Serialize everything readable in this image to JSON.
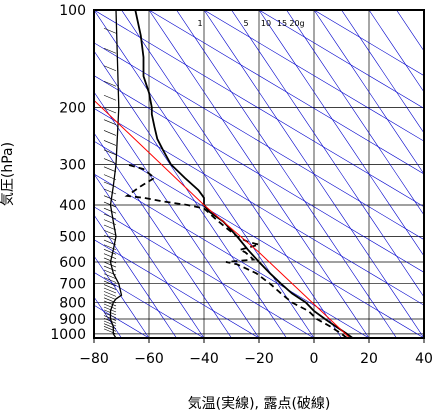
{
  "chart_data": {
    "type": "line",
    "title": "",
    "xlabel": "気温(実線), 露点(破線)",
    "ylabel": "気圧(hPa)",
    "xlim": [
      -80,
      40
    ],
    "ylim": [
      1030,
      100
    ],
    "y_scale": "log",
    "xticks": [
      -80,
      -60,
      -40,
      -20,
      0,
      20,
      40
    ],
    "yticks": [
      100,
      200,
      300,
      400,
      500,
      600,
      700,
      800,
      900,
      1000
    ],
    "mixing_ratio_labels": [
      "1",
      "5",
      "10",
      "15",
      "20g"
    ],
    "colors": {
      "temperature": "#000000",
      "dewpoint": "#000000",
      "parcel": "#ff0000",
      "grid": "#000000",
      "reference": "#0000cc"
    },
    "series": [
      {
        "name": "",
        "style": "solid",
        "points": [
          [
            14,
            1030
          ],
          [
            12,
            1000
          ],
          [
            8,
            950
          ],
          [
            4,
            900
          ],
          [
            0,
            850
          ],
          [
            -3,
            800
          ],
          [
            -8,
            750
          ],
          [
            -12,
            700
          ],
          [
            -16,
            650
          ],
          [
            -20,
            600
          ],
          [
            -24,
            550
          ],
          [
            -28,
            500
          ],
          [
            -33,
            450
          ],
          [
            -38,
            420
          ],
          [
            -40,
            400
          ],
          [
            -40,
            380
          ],
          [
            -42,
            360
          ],
          [
            -47,
            330
          ],
          [
            -52,
            300
          ],
          [
            -55,
            270
          ],
          [
            -57,
            250
          ],
          [
            -58,
            230
          ],
          [
            -59,
            210
          ],
          [
            -59,
            200
          ],
          [
            -60,
            180
          ],
          [
            -62,
            160
          ],
          [
            -62,
            140
          ],
          [
            -63,
            120
          ],
          [
            -65,
            100
          ]
        ]
      },
      {
        "name": "",
        "style": "dashed",
        "points": [
          [
            12,
            1030
          ],
          [
            10,
            1000
          ],
          [
            6,
            950
          ],
          [
            1,
            900
          ],
          [
            -2,
            850
          ],
          [
            -8,
            800
          ],
          [
            -12,
            750
          ],
          [
            -16,
            700
          ],
          [
            -21,
            650
          ],
          [
            -28,
            610
          ],
          [
            -32,
            600
          ],
          [
            -22,
            590
          ],
          [
            -25,
            560
          ],
          [
            -27,
            550
          ],
          [
            -20,
            530
          ],
          [
            -24,
            520
          ],
          [
            -28,
            500
          ],
          [
            -32,
            470
          ],
          [
            -36,
            440
          ],
          [
            -40,
            410
          ],
          [
            -46,
            400
          ],
          [
            -55,
            390
          ],
          [
            -62,
            380
          ],
          [
            -68,
            375
          ],
          [
            -63,
            350
          ],
          [
            -58,
            330
          ],
          [
            -62,
            310
          ],
          [
            -68,
            300
          ]
        ]
      },
      {
        "name": "",
        "style": "parcel",
        "points": [
          [
            -80,
            190
          ],
          [
            -40,
            400
          ],
          [
            -20,
            560
          ],
          [
            13,
            1030
          ]
        ]
      }
    ],
    "wind_profile": {
      "x": [
        -72,
        -73,
        -73,
        -74,
        -74,
        -73,
        -72,
        -70,
        -71,
        -73,
        -74,
        -73,
        -72,
        -73,
        -74,
        -73,
        -72,
        -71,
        -72
      ],
      "p": [
        1030,
        1000,
        950,
        900,
        850,
        800,
        780,
        760,
        700,
        650,
        600,
        550,
        500,
        450,
        400,
        350,
        300,
        200,
        100
      ]
    }
  }
}
